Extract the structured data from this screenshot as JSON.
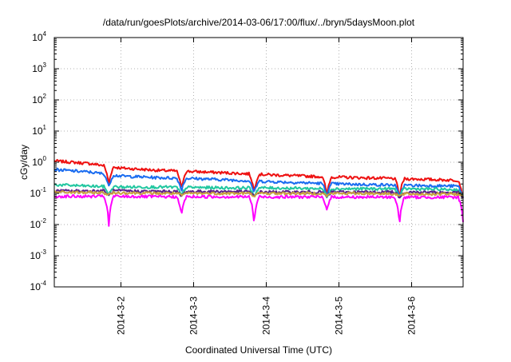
{
  "chart_data": {
    "type": "line",
    "title": "/data/run/goesPlots/archive/2014-03-06/17:00/flux/../bryn/5daysMoon.plot",
    "xlabel": "Coordinated Universal Time (UTC)",
    "ylabel": "cGy/day",
    "yscale": "log",
    "ylim": [
      0.0001,
      10000
    ],
    "y_ticks": [
      {
        "base": "10",
        "exp": "-4",
        "value": 0.0001
      },
      {
        "base": "10",
        "exp": "-3",
        "value": 0.001
      },
      {
        "base": "10",
        "exp": "-2",
        "value": 0.01
      },
      {
        "base": "10",
        "exp": "-1",
        "value": 0.1
      },
      {
        "base": "10",
        "exp": "0",
        "value": 1
      },
      {
        "base": "10",
        "exp": "1",
        "value": 10
      },
      {
        "base": "10",
        "exp": "2",
        "value": 100
      },
      {
        "base": "10",
        "exp": "3",
        "value": 1000
      },
      {
        "base": "10",
        "exp": "4",
        "value": 10000
      }
    ],
    "xlim": [
      "2014-03-01T02:00",
      "2014-03-06T17:00"
    ],
    "x_ticks": [
      {
        "label": "2014-3-2",
        "value": "2014-03-02T00:00"
      },
      {
        "label": "2014-3-3",
        "value": "2014-03-03T00:00"
      },
      {
        "label": "2014-3-4",
        "value": "2014-03-04T00:00"
      },
      {
        "label": "2014-3-5",
        "value": "2014-03-05T00:00"
      },
      {
        "label": "2014-3-6",
        "value": "2014-03-06T00:00"
      }
    ],
    "grid": true,
    "legend": "none",
    "x": [
      "2014-03-01T02:00",
      "2014-03-01T14:00",
      "2014-03-02T00:00",
      "2014-03-02T12:00",
      "2014-03-03T00:00",
      "2014-03-03T12:00",
      "2014-03-04T00:00",
      "2014-03-04T12:00",
      "2014-03-05T00:00",
      "2014-03-05T12:00",
      "2014-03-06T00:00",
      "2014-03-06T17:00"
    ],
    "series": [
      {
        "color": "#ee1111",
        "values": [
          1.1,
          0.9,
          0.65,
          0.55,
          0.5,
          0.45,
          0.4,
          0.36,
          0.33,
          0.31,
          0.29,
          0.26
        ]
      },
      {
        "color": "#1a6cf0",
        "values": [
          0.58,
          0.48,
          0.36,
          0.32,
          0.3,
          0.27,
          0.24,
          0.22,
          0.2,
          0.19,
          0.18,
          0.17
        ]
      },
      {
        "color": "#22c7a0",
        "values": [
          0.19,
          0.17,
          0.16,
          0.16,
          0.155,
          0.15,
          0.15,
          0.145,
          0.14,
          0.14,
          0.14,
          0.13
        ]
      },
      {
        "color": "#5b1f8a",
        "values": [
          0.12,
          0.12,
          0.12,
          0.115,
          0.115,
          0.115,
          0.11,
          0.11,
          0.11,
          0.11,
          0.11,
          0.105
        ]
      },
      {
        "color": "#c8a040",
        "values": [
          0.11,
          0.105,
          0.105,
          0.1,
          0.1,
          0.1,
          0.1,
          0.1,
          0.1,
          0.1,
          0.095,
          0.095
        ]
      },
      {
        "color": "#ff00ff",
        "values": [
          0.08,
          0.08,
          0.08,
          0.078,
          0.078,
          0.078,
          0.077,
          0.077,
          0.076,
          0.076,
          0.075,
          0.075
        ]
      }
    ],
    "dips": [
      {
        "x": "2014-03-01T20:00",
        "min": 0.009
      },
      {
        "x": "2014-03-02T20:00",
        "min": 0.02
      },
      {
        "x": "2014-03-03T20:00",
        "min": 0.009
      },
      {
        "x": "2014-03-04T20:00",
        "min": 0.03
      },
      {
        "x": "2014-03-05T20:00",
        "min": 0.008
      },
      {
        "x": "2014-03-06T17:00",
        "min": 0.012
      }
    ]
  }
}
